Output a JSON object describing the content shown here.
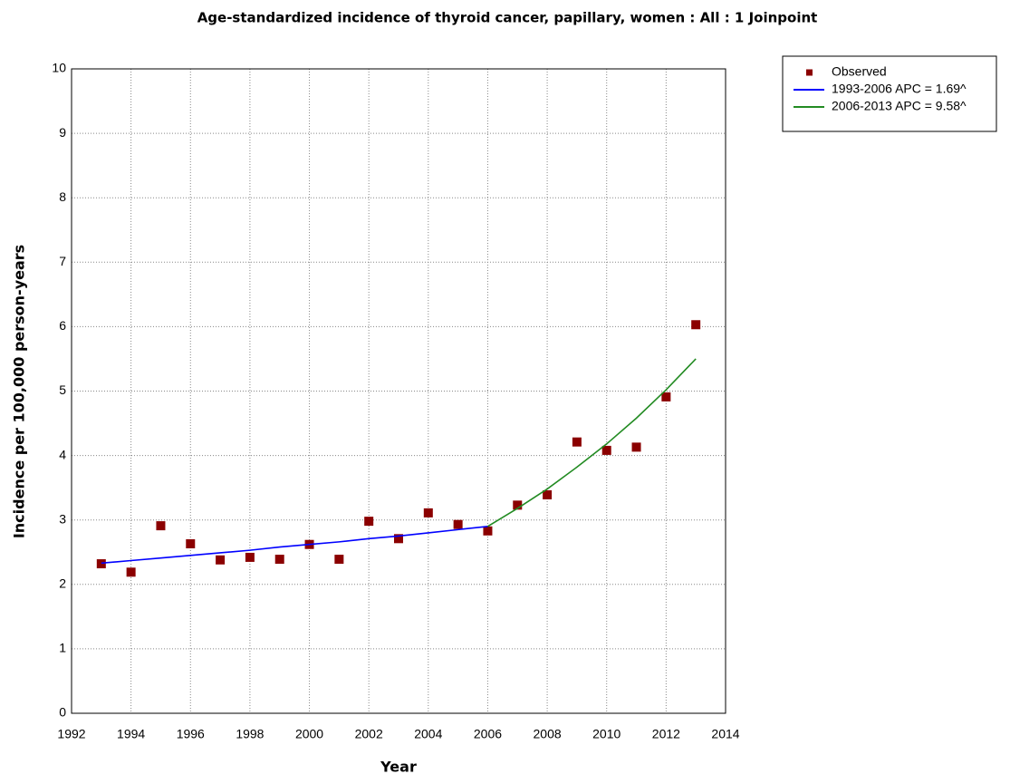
{
  "chart_data": {
    "type": "line",
    "title": "Age-standardized incidence of thyroid cancer, papillary, women : All : 1 Joinpoint",
    "x_label": "Year",
    "y_label": "Incidence per 100,000 person-years",
    "xlim": [
      1992,
      2014
    ],
    "xticks": [
      1992,
      1994,
      1996,
      1998,
      2000,
      2002,
      2004,
      2006,
      2008,
      2010,
      2012,
      2014
    ],
    "ylim": [
      0,
      10
    ],
    "yticks": [
      0,
      1,
      2,
      3,
      4,
      5,
      6,
      7,
      8,
      9,
      10
    ],
    "grid": true,
    "legend": "outside-top-right",
    "series": [
      {
        "name": "Observed",
        "color": "#8b0000",
        "marker": "square",
        "x": [
          1993,
          1994,
          1995,
          1996,
          1997,
          1998,
          1999,
          2000,
          2001,
          2002,
          2003,
          2004,
          2005,
          2006,
          2007,
          2008,
          2009,
          2010,
          2011,
          2012,
          2013
        ],
        "values": [
          2.32,
          2.19,
          2.91,
          2.63,
          2.38,
          2.42,
          2.39,
          2.62,
          2.39,
          2.98,
          2.71,
          3.11,
          2.93,
          2.83,
          3.23,
          3.39,
          4.21,
          4.08,
          4.13,
          4.91,
          6.03
        ]
      },
      {
        "name": "1993-2006 APC  = 1.69^",
        "color": "#0000ff",
        "marker": "line",
        "x": [
          1993,
          1994,
          1995,
          1996,
          1997,
          1998,
          1999,
          2000,
          2001,
          2002,
          2003,
          2004,
          2005,
          2006
        ],
        "values": [
          2.33,
          2.37,
          2.41,
          2.45,
          2.49,
          2.53,
          2.58,
          2.62,
          2.66,
          2.71,
          2.75,
          2.8,
          2.85,
          2.9
        ]
      },
      {
        "name": "2006-2013 APC  = 9.58^",
        "color": "#228b22",
        "marker": "line",
        "x": [
          2006,
          2007,
          2008,
          2009,
          2010,
          2011,
          2012,
          2013
        ],
        "values": [
          2.9,
          3.18,
          3.48,
          3.82,
          4.18,
          4.58,
          5.02,
          5.5
        ]
      }
    ]
  }
}
